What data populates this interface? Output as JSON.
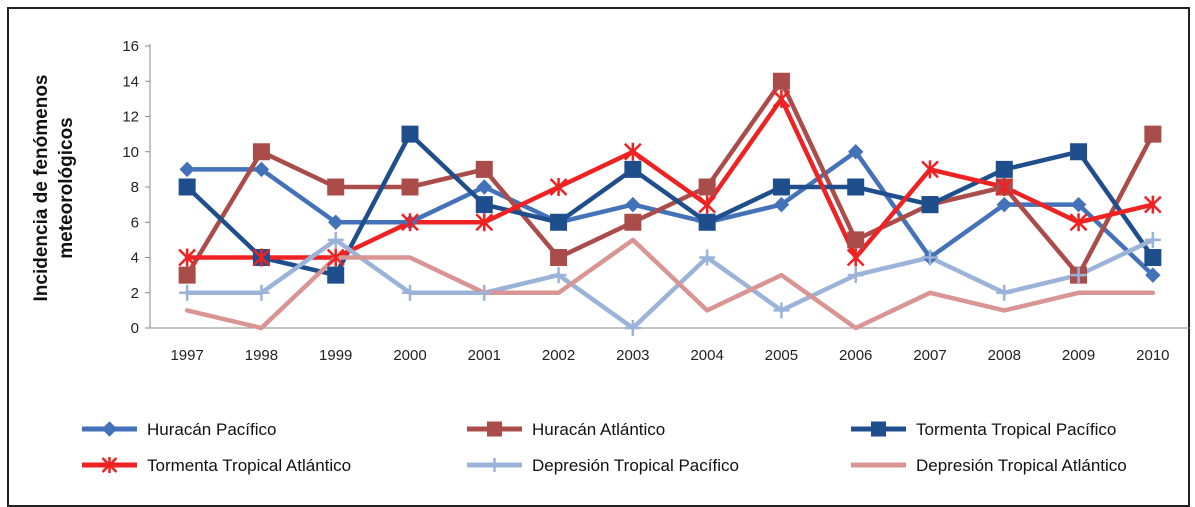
{
  "chart_data": {
    "type": "line",
    "title": "",
    "xlabel": "",
    "ylabel_lines": [
      "Incidencia de fenómenos",
      "meteorológicos"
    ],
    "x": [
      "1997",
      "1998",
      "1999",
      "2000",
      "2001",
      "2002",
      "2003",
      "2004",
      "2005",
      "2006",
      "2007",
      "2008",
      "2009",
      "2010"
    ],
    "ylim": [
      0,
      16
    ],
    "yticks": [
      0,
      2,
      4,
      6,
      8,
      10,
      12,
      14,
      16
    ],
    "grid": false,
    "legend_position": "bottom",
    "series": [
      {
        "name": "Huracán Pacífico",
        "color": "#4472b8",
        "marker": "diamond",
        "values": [
          9,
          9,
          6,
          6,
          8,
          6,
          7,
          6,
          7,
          10,
          4,
          7,
          7,
          3
        ]
      },
      {
        "name": "Huracán Atlántico",
        "color": "#a94c4a",
        "marker": "square",
        "values": [
          3,
          10,
          8,
          8,
          9,
          4,
          6,
          8,
          14,
          5,
          7,
          8,
          3,
          11
        ]
      },
      {
        "name": "Tormenta Tropical Pacífico",
        "color": "#1f4e8c",
        "marker": "square",
        "values": [
          8,
          4,
          3,
          11,
          7,
          6,
          9,
          6,
          8,
          8,
          7,
          9,
          10,
          4
        ]
      },
      {
        "name": "Tormenta Tropical Atlántico",
        "color": "#ee2222",
        "marker": "star",
        "values": [
          4,
          4,
          4,
          6,
          6,
          8,
          10,
          7,
          13,
          4,
          9,
          8,
          6,
          7
        ]
      },
      {
        "name": "Depresión Tropical Pacífico",
        "color": "#9bb3d9",
        "marker": "plus",
        "values": [
          2,
          2,
          5,
          2,
          2,
          3,
          0,
          4,
          1,
          3,
          4,
          2,
          3,
          5
        ]
      },
      {
        "name": "Depresión Tropical Atlántico",
        "color": "#d99594",
        "marker": "none",
        "values": [
          1,
          0,
          4,
          4,
          2,
          2,
          5,
          1,
          3,
          0,
          2,
          1,
          2,
          2
        ]
      }
    ]
  }
}
